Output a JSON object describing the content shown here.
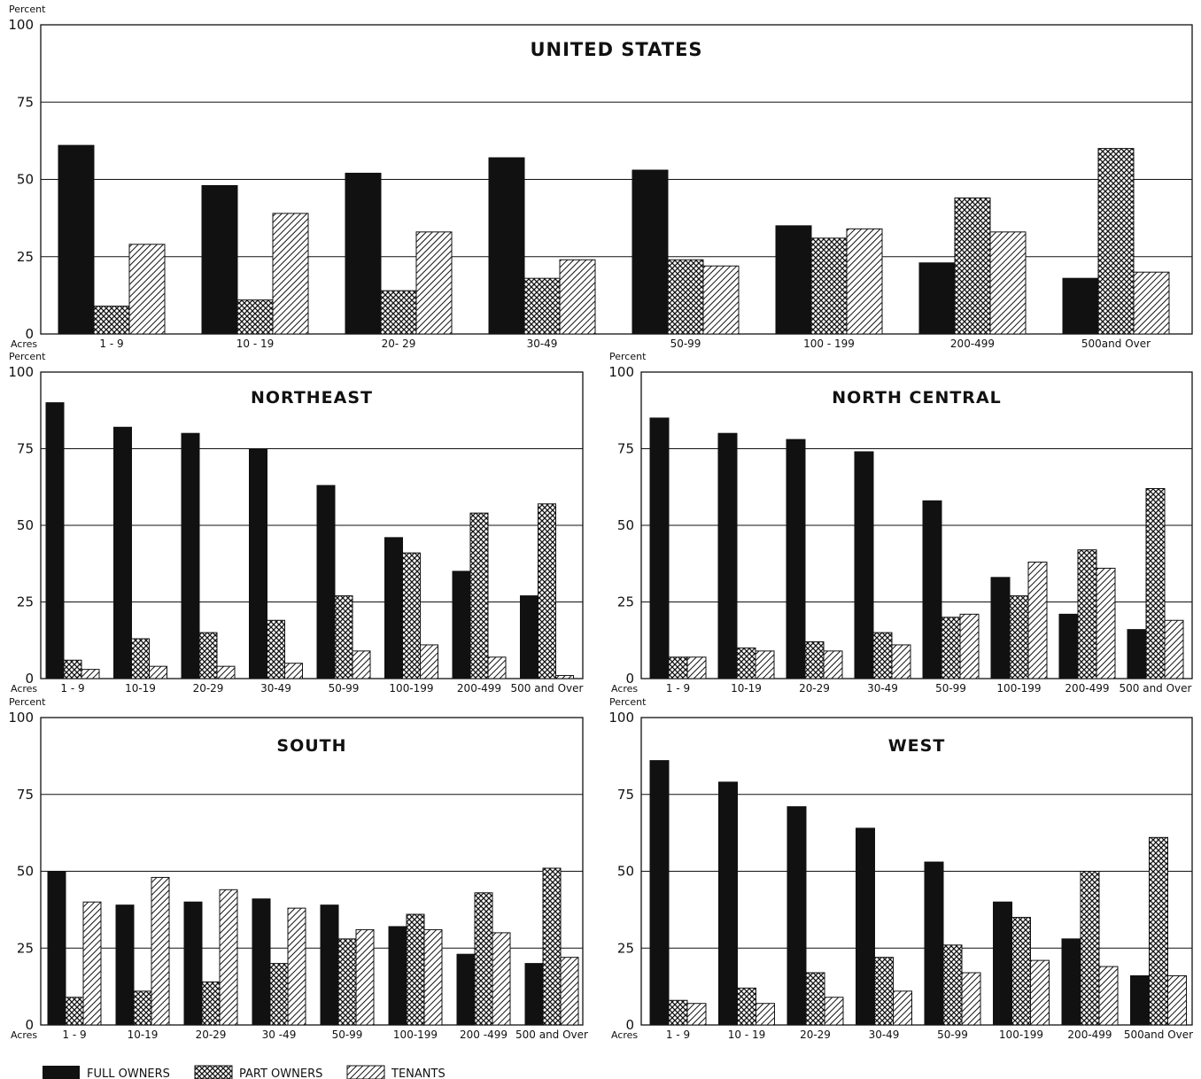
{
  "ylabel": "Percent",
  "acres_label": "Acres",
  "yticks": [
    0,
    25,
    50,
    75,
    100
  ],
  "legend": [
    "FULL OWNERS",
    "PART OWNERS",
    "TENANTS"
  ],
  "colors": {
    "ink": "#111111",
    "background": "#ffffff"
  },
  "chart_data": [
    {
      "type": "bar",
      "title": "UNITED STATES",
      "categories": [
        "1 - 9",
        "10 - 19",
        "20- 29",
        "30-49",
        "50-99",
        "100 - 199",
        "200-499",
        "500and Over"
      ],
      "ylim": [
        0,
        100
      ],
      "series": [
        {
          "name": "FULL OWNERS",
          "values": [
            61,
            48,
            52,
            57,
            53,
            35,
            23,
            18
          ]
        },
        {
          "name": "PART OWNERS",
          "values": [
            9,
            11,
            14,
            18,
            24,
            31,
            44,
            60
          ]
        },
        {
          "name": "TENANTS",
          "values": [
            29,
            39,
            33,
            24,
            22,
            34,
            33,
            20
          ]
        }
      ]
    },
    {
      "type": "bar",
      "title": "NORTHEAST",
      "categories": [
        "1 - 9",
        "10-19",
        "20-29",
        "30-49",
        "50-99",
        "100-199",
        "200-499",
        "500 and Over"
      ],
      "ylim": [
        0,
        100
      ],
      "series": [
        {
          "name": "FULL OWNERS",
          "values": [
            90,
            82,
            80,
            75,
            63,
            46,
            35,
            27
          ]
        },
        {
          "name": "PART OWNERS",
          "values": [
            6,
            13,
            15,
            19,
            27,
            41,
            54,
            57
          ]
        },
        {
          "name": "TENANTS",
          "values": [
            3,
            4,
            4,
            5,
            9,
            11,
            7,
            1
          ]
        }
      ]
    },
    {
      "type": "bar",
      "title": "NORTH CENTRAL",
      "categories": [
        "1 - 9",
        "10-19",
        "20-29",
        "30-49",
        "50-99",
        "100-199",
        "200-499",
        "500 and Over"
      ],
      "ylim": [
        0,
        100
      ],
      "series": [
        {
          "name": "FULL OWNERS",
          "values": [
            85,
            80,
            78,
            74,
            58,
            33,
            21,
            16
          ]
        },
        {
          "name": "PART OWNERS",
          "values": [
            7,
            10,
            12,
            15,
            20,
            27,
            42,
            62
          ]
        },
        {
          "name": "TENANTS",
          "values": [
            7,
            9,
            9,
            11,
            21,
            38,
            36,
            19
          ]
        }
      ]
    },
    {
      "type": "bar",
      "title": "SOUTH",
      "categories": [
        "1 - 9",
        "10-19",
        "20-29",
        "30 -49",
        "50-99",
        "100-199",
        "200 -499",
        "500 and Over"
      ],
      "ylim": [
        0,
        100
      ],
      "series": [
        {
          "name": "FULL OWNERS",
          "values": [
            50,
            39,
            40,
            41,
            39,
            32,
            23,
            20
          ]
        },
        {
          "name": "PART OWNERS",
          "values": [
            9,
            11,
            14,
            20,
            28,
            36,
            43,
            51
          ]
        },
        {
          "name": "TENANTS",
          "values": [
            40,
            48,
            44,
            38,
            31,
            31,
            30,
            22
          ]
        }
      ]
    },
    {
      "type": "bar",
      "title": "WEST",
      "categories": [
        "1 - 9",
        "10 - 19",
        "20-29",
        "30-49",
        "50-99",
        "100-199",
        "200-499",
        "500and Over"
      ],
      "ylim": [
        0,
        100
      ],
      "series": [
        {
          "name": "FULL OWNERS",
          "values": [
            86,
            79,
            71,
            64,
            53,
            40,
            28,
            16
          ]
        },
        {
          "name": "PART OWNERS",
          "values": [
            8,
            12,
            17,
            22,
            26,
            35,
            50,
            61
          ]
        },
        {
          "name": "TENANTS",
          "values": [
            7,
            7,
            9,
            11,
            17,
            21,
            19,
            16
          ]
        }
      ]
    }
  ]
}
